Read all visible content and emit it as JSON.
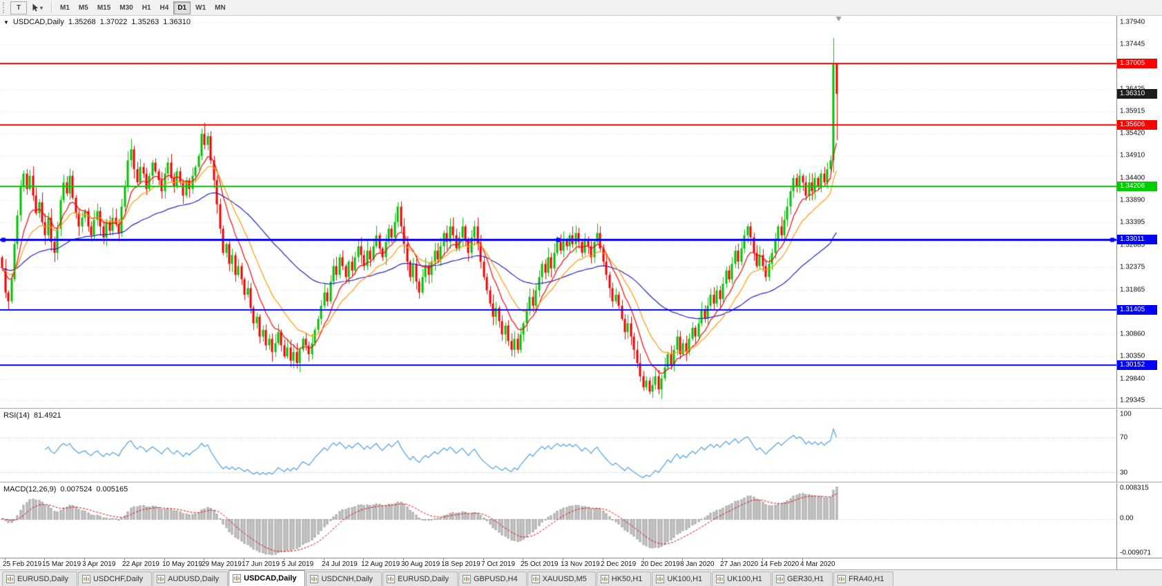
{
  "toolbar": {
    "text_tool_label": "T",
    "timeframes": [
      {
        "label": "M1"
      },
      {
        "label": "M5"
      },
      {
        "label": "M15"
      },
      {
        "label": "M30"
      },
      {
        "label": "H1"
      },
      {
        "label": "H4"
      },
      {
        "label": "D1"
      },
      {
        "label": "W1"
      },
      {
        "label": "MN"
      }
    ],
    "active_timeframe": "D1"
  },
  "chart_header": {
    "collapse_icon": "▼",
    "symbol": "USDCAD,Daily",
    "open": "1.35268",
    "high": "1.37022",
    "low": "1.35263",
    "close": "1.36310"
  },
  "indicators": {
    "rsi": {
      "label": "RSI(14)",
      "value": "81.4921",
      "period": 14,
      "levels": [
        70,
        30
      ],
      "axis_labels": [
        "100",
        "70",
        "30"
      ],
      "axis_values": [
        100,
        70,
        30
      ],
      "scale_min": 20,
      "scale_max": 102,
      "line_color": "#4a9fe3"
    },
    "macd": {
      "label": "MACD(12,26,9)",
      "value_main": "0.007524",
      "value_signal": "0.005165",
      "fast": 12,
      "slow": 26,
      "signal": 9,
      "axis_labels": [
        "0.008315",
        "0.00",
        "-0.009071"
      ],
      "axis_values": [
        0.008315,
        0,
        -0.009071
      ],
      "scale_min": -0.0096,
      "scale_max": 0.0088,
      "histogram_fill": "#d2d2d2",
      "histogram_border": "#8c8c8c",
      "signal_color": "#e00000"
    }
  },
  "price_axis": {
    "decimals": 5,
    "ticks": [
      1.3794,
      1.37445,
      1.36935,
      1.36425,
      1.35915,
      1.3542,
      1.3491,
      1.344,
      1.3389,
      1.33395,
      1.32885,
      1.32375,
      1.31865,
      1.31355,
      1.3086,
      1.3035,
      1.2984,
      1.29345
    ]
  },
  "hlines": [
    {
      "price": 1.37005,
      "label": "1.37005",
      "color": "#ff0000",
      "width": 2,
      "selected": false
    },
    {
      "price": 1.35606,
      "label": "1.35606",
      "color": "#ff0000",
      "width": 2,
      "selected": false
    },
    {
      "price": 1.34206,
      "label": "1.34206",
      "color": "#00cc00",
      "width": 2,
      "selected": false
    },
    {
      "price": 1.33011,
      "label": "1.33011",
      "color": "#0000ff",
      "width": 3,
      "selected": true
    },
    {
      "price": 1.31405,
      "label": "1.31405",
      "color": "#0000ff",
      "width": 2,
      "selected": false
    },
    {
      "price": 1.30152,
      "label": "1.30152",
      "color": "#0000ff",
      "width": 2,
      "selected": false
    }
  ],
  "current_price_tag": {
    "value": 1.3631,
    "label": "1.36310",
    "bg": "#1b1b1b"
  },
  "moving_averages": [
    {
      "period": 60,
      "color": "#2020cc"
    },
    {
      "period": 9,
      "color": "#ff0000"
    },
    {
      "period": 18,
      "color": "#ff9900"
    }
  ],
  "colors": {
    "candle_up": "#00c000",
    "candle_down": "#f00000",
    "grid": "#dcdcdc",
    "background": "#ffffff",
    "axis_text": "#111111",
    "shift_marker": "#999999"
  },
  "chart_data": {
    "type": "candlestick",
    "symbol": "USDCAD",
    "timeframe": "Daily",
    "price_min": 1.2918,
    "price_max": 1.3808,
    "right_gap_fraction": 0.25,
    "first_open": 1.326,
    "closes": [
      1.3235,
      1.318,
      1.316,
      1.321,
      1.329,
      1.3355,
      1.342,
      1.345,
      1.3415,
      1.3445,
      1.34,
      1.336,
      1.3385,
      1.334,
      1.331,
      1.335,
      1.3295,
      1.327,
      1.3325,
      1.339,
      1.343,
      1.3405,
      1.3445,
      1.3395,
      1.336,
      1.333,
      1.335,
      1.3365,
      1.333,
      1.331,
      1.3345,
      1.3365,
      1.333,
      1.3305,
      1.334,
      1.332,
      1.335,
      1.3335,
      1.3315,
      1.3375,
      1.342,
      1.348,
      1.3505,
      1.346,
      1.343,
      1.3465,
      1.345,
      1.3415,
      1.3445,
      1.3475,
      1.3455,
      1.3435,
      1.341,
      1.345,
      1.3475,
      1.344,
      1.342,
      1.3455,
      1.343,
      1.34,
      1.3435,
      1.3415,
      1.3445,
      1.3465,
      1.349,
      1.354,
      1.3515,
      1.3535,
      1.348,
      1.3435,
      1.338,
      1.3325,
      1.327,
      1.329,
      1.3245,
      1.3265,
      1.322,
      1.324,
      1.321,
      1.3175,
      1.319,
      1.3145,
      1.311,
      1.3125,
      1.308,
      1.3095,
      1.306,
      1.3075,
      1.3045,
      1.3065,
      1.309,
      1.306,
      1.3035,
      1.3055,
      1.3025,
      1.3045,
      1.302,
      1.305,
      1.3075,
      1.306,
      1.304,
      1.3065,
      1.3095,
      1.312,
      1.315,
      1.318,
      1.316,
      1.3205,
      1.324,
      1.322,
      1.326,
      1.324,
      1.3215,
      1.325,
      1.323,
      1.326,
      1.3285,
      1.3265,
      1.324,
      1.3275,
      1.3255,
      1.3285,
      1.331,
      1.328,
      1.326,
      1.3295,
      1.3325,
      1.3305,
      1.334,
      1.3375,
      1.333,
      1.329,
      1.325,
      1.3215,
      1.3245,
      1.3205,
      1.318,
      1.3215,
      1.324,
      1.322,
      1.325,
      1.3275,
      1.3255,
      1.3285,
      1.3315,
      1.3295,
      1.333,
      1.331,
      1.328,
      1.3305,
      1.333,
      1.33,
      1.327,
      1.3305,
      1.333,
      1.329,
      1.325,
      1.3215,
      1.3185,
      1.3155,
      1.3125,
      1.3145,
      1.3115,
      1.3085,
      1.3105,
      1.307,
      1.305,
      1.3075,
      1.305,
      1.3085,
      1.311,
      1.314,
      1.317,
      1.315,
      1.3185,
      1.3215,
      1.3245,
      1.3225,
      1.326,
      1.3235,
      1.327,
      1.3295,
      1.3275,
      1.33,
      1.3285,
      1.331,
      1.329,
      1.3315,
      1.3295,
      1.327,
      1.33,
      1.3285,
      1.326,
      1.3295,
      1.3315,
      1.328,
      1.325,
      1.322,
      1.319,
      1.316,
      1.3175,
      1.315,
      1.312,
      1.309,
      1.311,
      1.308,
      1.305,
      1.302,
      1.299,
      1.2965,
      1.298,
      1.2955,
      1.297,
      1.299,
      1.296,
      1.2985,
      1.301,
      1.304,
      1.3015,
      1.305,
      1.308,
      1.304,
      1.3065,
      1.3045,
      1.3075,
      1.31,
      1.308,
      1.311,
      1.314,
      1.312,
      1.315,
      1.3175,
      1.3155,
      1.3185,
      1.3165,
      1.32,
      1.323,
      1.321,
      1.3245,
      1.3275,
      1.325,
      1.328,
      1.331,
      1.333,
      1.3305,
      1.327,
      1.324,
      1.3265,
      1.324,
      1.3215,
      1.3245,
      1.327,
      1.33,
      1.333,
      1.331,
      1.3345,
      1.3375,
      1.341,
      1.344,
      1.342,
      1.3445,
      1.343,
      1.34,
      1.343,
      1.341,
      1.344,
      1.342,
      1.345,
      1.343,
      1.346,
      1.348,
      1.37,
      1.3631
    ],
    "overrides": {
      "2": {
        "l": 1.3142
      },
      "42": {
        "h": 1.3528
      },
      "65": {
        "h": 1.3552
      },
      "66": {
        "h": 1.3565
      },
      "96": {
        "l": 1.3008
      },
      "129": {
        "h": 1.3385
      },
      "211": {
        "l": 1.2949
      },
      "249": {
        "l": 1.3205
      },
      "271": {
        "h": 1.3758,
        "l": 1.3452
      },
      "272": {
        "h": 1.3702,
        "l": 1.3526
      }
    }
  },
  "date_axis": {
    "bars_per_label": 13,
    "first_bar": 1,
    "labels": [
      "25 Feb 2019",
      "15 Mar 2019",
      "3 Apr 2019",
      "22 Apr 2019",
      "10 May 2019",
      "29 May 2019",
      "17 Jun 2019",
      "5 Jul 2019",
      "24 Jul 2019",
      "12 Aug 2019",
      "30 Aug 2019",
      "18 Sep 2019",
      "7 Oct 2019",
      "25 Oct 2019",
      "13 Nov 2019",
      "2 Dec 2019",
      "20 Dec 2019",
      "8 Jan 2020",
      "27 Jan 2020",
      "14 Feb 2020",
      "4 Mar 2020"
    ]
  },
  "tabs": [
    {
      "label": "EURUSD,Daily",
      "active": false
    },
    {
      "label": "USDCHF,Daily",
      "active": false
    },
    {
      "label": "AUDUSD,Daily",
      "active": false
    },
    {
      "label": "USDCAD,Daily",
      "active": true
    },
    {
      "label": "USDCNH,Daily",
      "active": false
    },
    {
      "label": "EURUSD,Daily",
      "active": false
    },
    {
      "label": "GBPUSD,H4",
      "active": false
    },
    {
      "label": "XAUUSD,M5",
      "active": false
    },
    {
      "label": "HK50,H1",
      "active": false
    },
    {
      "label": "UK100,H1",
      "active": false
    },
    {
      "label": "UK100,H1",
      "active": false
    },
    {
      "label": "GER30,H1",
      "active": false
    },
    {
      "label": "FRA40,H1",
      "active": false
    }
  ]
}
